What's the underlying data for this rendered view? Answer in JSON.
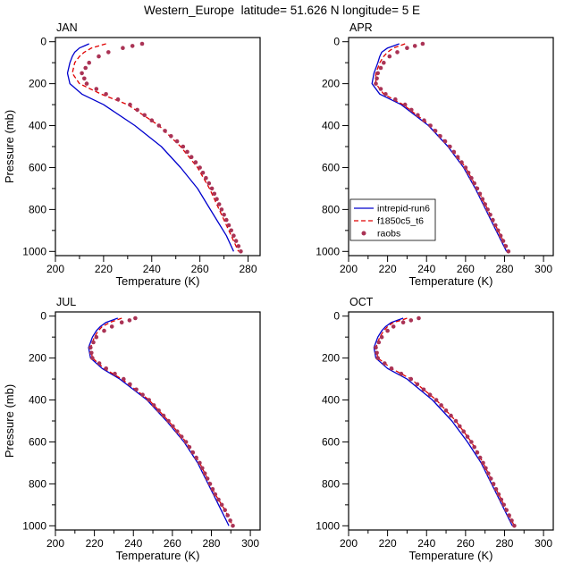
{
  "figure": {
    "title": "Western_Europe  latitude= 51.626 N longitude= 5 E"
  },
  "chart_data": {
    "type": "line",
    "title": "Western_Europe  latitude= 51.626 N longitude= 5 E",
    "xlabel": "Temperature (K)",
    "ylabel": "Pressure (mb)",
    "grid": false,
    "y_axis": {
      "label": "Pressure (mb)",
      "min": 0,
      "max": 1000,
      "inverted": true,
      "ticks": [
        0,
        200,
        400,
        600,
        800,
        1000
      ],
      "minor_ticks": [
        100,
        300,
        500,
        700,
        900
      ]
    },
    "series_meta": [
      {
        "name": "intrepid-run6",
        "color": "#0000cd",
        "style": "solid"
      },
      {
        "name": "f1850c5_t6",
        "color": "#e00000",
        "style": "dashed"
      },
      {
        "name": "raobs",
        "color": "#aa3355",
        "style": "dots"
      }
    ],
    "legend": {
      "position": "inside APR panel, lower-left",
      "entries": [
        "intrepid-run6",
        "f1850c5_t6",
        "raobs"
      ]
    },
    "pressure_levels": [
      10,
      20,
      30,
      50,
      70,
      100,
      150,
      200,
      250,
      300,
      400,
      500,
      600,
      700,
      775,
      850,
      925,
      1000
    ],
    "panels": [
      {
        "label": "JAN",
        "has_legend": false,
        "x_axis": {
          "min": 200,
          "max": 285,
          "ticks": [
            200,
            220,
            240,
            260,
            280
          ],
          "minor_step": 10
        },
        "series": {
          "intrepid-run6": [
            214,
            212,
            210,
            208,
            207,
            206,
            205,
            206,
            211,
            220,
            233,
            244,
            252,
            259,
            263,
            267,
            271,
            274
          ],
          "f1850c5_t6": [
            221,
            218,
            215,
            212,
            210,
            208,
            207,
            210,
            219,
            230,
            243,
            252,
            259,
            264,
            267,
            270,
            273,
            276
          ],
          "raobs": [
            236,
            232,
            228,
            222,
            218,
            214,
            211,
            213,
            221,
            231,
            243,
            253,
            260,
            265,
            268,
            271,
            274,
            277
          ]
        }
      },
      {
        "label": "APR",
        "has_legend": true,
        "x_axis": {
          "min": 200,
          "max": 305,
          "ticks": [
            200,
            220,
            240,
            260,
            280,
            300
          ],
          "minor_step": 10
        },
        "series": {
          "intrepid-run6": [
            226,
            223,
            220,
            217,
            216,
            215,
            213,
            212,
            216,
            227,
            241,
            251,
            259,
            265,
            269,
            273,
            277,
            281
          ],
          "f1850c5_t6": [
            229,
            226,
            223,
            220,
            218,
            216,
            214,
            214,
            218,
            228,
            242,
            252,
            260,
            266,
            270,
            274,
            278,
            282
          ],
          "raobs": [
            238,
            234,
            230,
            225,
            221,
            218,
            215,
            214,
            219,
            229,
            242,
            252,
            260,
            266,
            270,
            274,
            278,
            282
          ]
        }
      },
      {
        "label": "JUL",
        "has_legend": false,
        "x_axis": {
          "min": 200,
          "max": 305,
          "ticks": [
            200,
            220,
            240,
            260,
            280,
            300
          ],
          "minor_step": 10
        },
        "series": {
          "intrepid-run6": [
            232,
            229,
            226,
            223,
            221,
            219,
            217,
            218,
            224,
            233,
            247,
            257,
            266,
            273,
            277,
            281,
            285,
            289
          ],
          "f1850c5_t6": [
            234,
            231,
            228,
            224,
            222,
            220,
            218,
            219,
            225,
            234,
            248,
            258,
            267,
            274,
            278,
            282,
            287,
            291
          ],
          "raobs": [
            241,
            238,
            234,
            229,
            225,
            221,
            218,
            219,
            226,
            235,
            248,
            258,
            267,
            274,
            278,
            282,
            287,
            291
          ]
        }
      },
      {
        "label": "OCT",
        "has_legend": false,
        "x_axis": {
          "min": 200,
          "max": 305,
          "ticks": [
            200,
            220,
            240,
            260,
            280,
            300
          ],
          "minor_step": 10
        },
        "series": {
          "intrepid-run6": [
            228,
            225,
            222,
            219,
            217,
            215,
            213,
            214,
            220,
            230,
            243,
            253,
            261,
            268,
            272,
            276,
            280,
            284
          ],
          "f1850c5_t6": [
            230,
            227,
            223,
            220,
            218,
            216,
            214,
            215,
            222,
            232,
            245,
            255,
            263,
            269,
            273,
            277,
            281,
            285
          ],
          "raobs": [
            236,
            232,
            228,
            223,
            220,
            217,
            214,
            215,
            222,
            232,
            245,
            255,
            263,
            269,
            273,
            277,
            281,
            285
          ]
        }
      }
    ]
  }
}
